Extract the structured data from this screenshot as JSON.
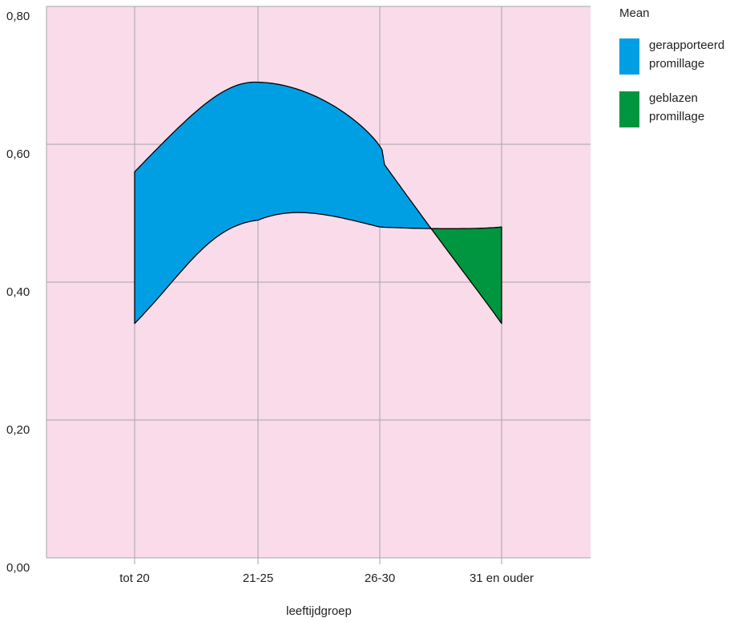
{
  "chart_data": {
    "type": "area",
    "xlabel": "leeftijdgroep",
    "ylabel": "",
    "categories": [
      "tot 20",
      "21-25",
      "26-30",
      "31 en ouder"
    ],
    "ylim": [
      0,
      0.8
    ],
    "yticks": [
      "0,00",
      "0,20",
      "0,40",
      "0,60",
      "0,80"
    ],
    "series": [
      {
        "name": "gerapporteerd promillage",
        "values": [
          0.56,
          0.69,
          0.58,
          0.34
        ]
      },
      {
        "name": "geblazen promillage",
        "values": [
          0.34,
          0.49,
          0.48,
          0.48
        ]
      }
    ],
    "fill_colors": {
      "upper_above": "#009fe3",
      "lower_above": "#00963f"
    },
    "grid": true,
    "legend": {
      "title": "Mean",
      "position": "top-right"
    },
    "plot_background": "#f9dbea"
  }
}
